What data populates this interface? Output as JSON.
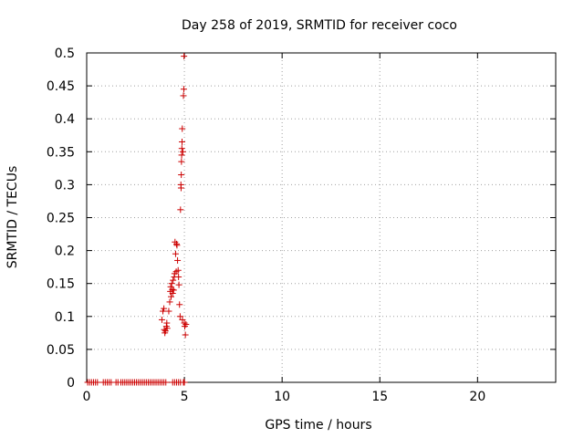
{
  "chart_data": {
    "type": "scatter",
    "title": "Day 258 of 2019, SRMTID for receiver coco",
    "xlabel": "GPS time / hours",
    "ylabel": "SRMTID / TECUs",
    "xlim": [
      0,
      24
    ],
    "ylim": [
      0,
      0.5
    ],
    "xticks": [
      0,
      5,
      10,
      15,
      20
    ],
    "yticks": [
      0,
      0.05,
      0.1,
      0.15,
      0.2,
      0.25,
      0.3,
      0.35,
      0.4,
      0.45,
      0.5
    ],
    "xtick_labels": [
      "0",
      "5",
      "10",
      "15",
      "20"
    ],
    "ytick_labels": [
      "0",
      "0.05",
      "0.1",
      "0.15",
      "0.2",
      "0.25",
      "0.3",
      "0.35",
      "0.4",
      "0.45",
      "0.5"
    ],
    "grid": true,
    "marker": "+",
    "color": "#cc0000",
    "series": [
      {
        "name": "SRMTID",
        "points": [
          [
            0.05,
            0
          ],
          [
            0.15,
            0
          ],
          [
            0.25,
            0
          ],
          [
            0.35,
            0
          ],
          [
            0.45,
            0
          ],
          [
            0.55,
            0
          ],
          [
            0.85,
            0
          ],
          [
            0.95,
            0
          ],
          [
            1.05,
            0
          ],
          [
            1.15,
            0
          ],
          [
            1.25,
            0
          ],
          [
            1.5,
            0
          ],
          [
            1.6,
            0
          ],
          [
            1.75,
            0
          ],
          [
            1.85,
            0
          ],
          [
            1.95,
            0
          ],
          [
            2.05,
            0
          ],
          [
            2.15,
            0
          ],
          [
            2.25,
            0
          ],
          [
            2.35,
            0
          ],
          [
            2.45,
            0
          ],
          [
            2.55,
            0
          ],
          [
            2.65,
            0
          ],
          [
            2.75,
            0
          ],
          [
            2.85,
            0
          ],
          [
            2.95,
            0
          ],
          [
            3.05,
            0
          ],
          [
            3.15,
            0
          ],
          [
            3.25,
            0
          ],
          [
            3.35,
            0
          ],
          [
            3.45,
            0
          ],
          [
            3.55,
            0
          ],
          [
            3.65,
            0
          ],
          [
            3.75,
            0
          ],
          [
            3.85,
            0
          ],
          [
            3.95,
            0
          ],
          [
            4.05,
            0
          ],
          [
            4.4,
            0
          ],
          [
            4.5,
            0
          ],
          [
            4.6,
            0
          ],
          [
            4.7,
            0
          ],
          [
            4.8,
            0
          ],
          [
            4.95,
            0
          ],
          [
            5.0,
            0
          ],
          [
            3.85,
            0.095
          ],
          [
            3.9,
            0.108
          ],
          [
            3.95,
            0.112
          ],
          [
            3.97,
            0.08
          ],
          [
            4.0,
            0.075
          ],
          [
            4.03,
            0.078
          ],
          [
            4.08,
            0.085
          ],
          [
            4.1,
            0.09
          ],
          [
            4.12,
            0.082
          ],
          [
            4.2,
            0.108
          ],
          [
            4.25,
            0.122
          ],
          [
            4.28,
            0.138
          ],
          [
            4.3,
            0.145
          ],
          [
            4.32,
            0.13
          ],
          [
            4.35,
            0.15
          ],
          [
            4.38,
            0.141
          ],
          [
            4.4,
            0.135
          ],
          [
            4.42,
            0.155
          ],
          [
            4.45,
            0.14
          ],
          [
            4.48,
            0.16
          ],
          [
            4.5,
            0.165
          ],
          [
            4.52,
            0.213
          ],
          [
            4.55,
            0.195
          ],
          [
            4.58,
            0.168
          ],
          [
            4.6,
            0.21
          ],
          [
            4.62,
            0.208
          ],
          [
            4.65,
            0.185
          ],
          [
            4.68,
            0.17
          ],
          [
            4.7,
            0.16
          ],
          [
            4.72,
            0.148
          ],
          [
            4.75,
            0.118
          ],
          [
            4.78,
            0.1
          ],
          [
            4.8,
            0.262
          ],
          [
            4.82,
            0.3
          ],
          [
            4.83,
            0.295
          ],
          [
            4.84,
            0.315
          ],
          [
            4.85,
            0.335
          ],
          [
            4.86,
            0.345
          ],
          [
            4.87,
            0.355
          ],
          [
            4.88,
            0.365
          ],
          [
            4.89,
            0.385
          ],
          [
            4.9,
            0.095
          ],
          [
            4.92,
            0.35
          ],
          [
            4.95,
            0.435
          ],
          [
            4.97,
            0.445
          ],
          [
            4.98,
            0.495
          ],
          [
            5.0,
            0.09
          ],
          [
            5.02,
            0.085
          ],
          [
            5.05,
            0.072
          ],
          [
            5.08,
            0.088
          ]
        ]
      }
    ]
  }
}
